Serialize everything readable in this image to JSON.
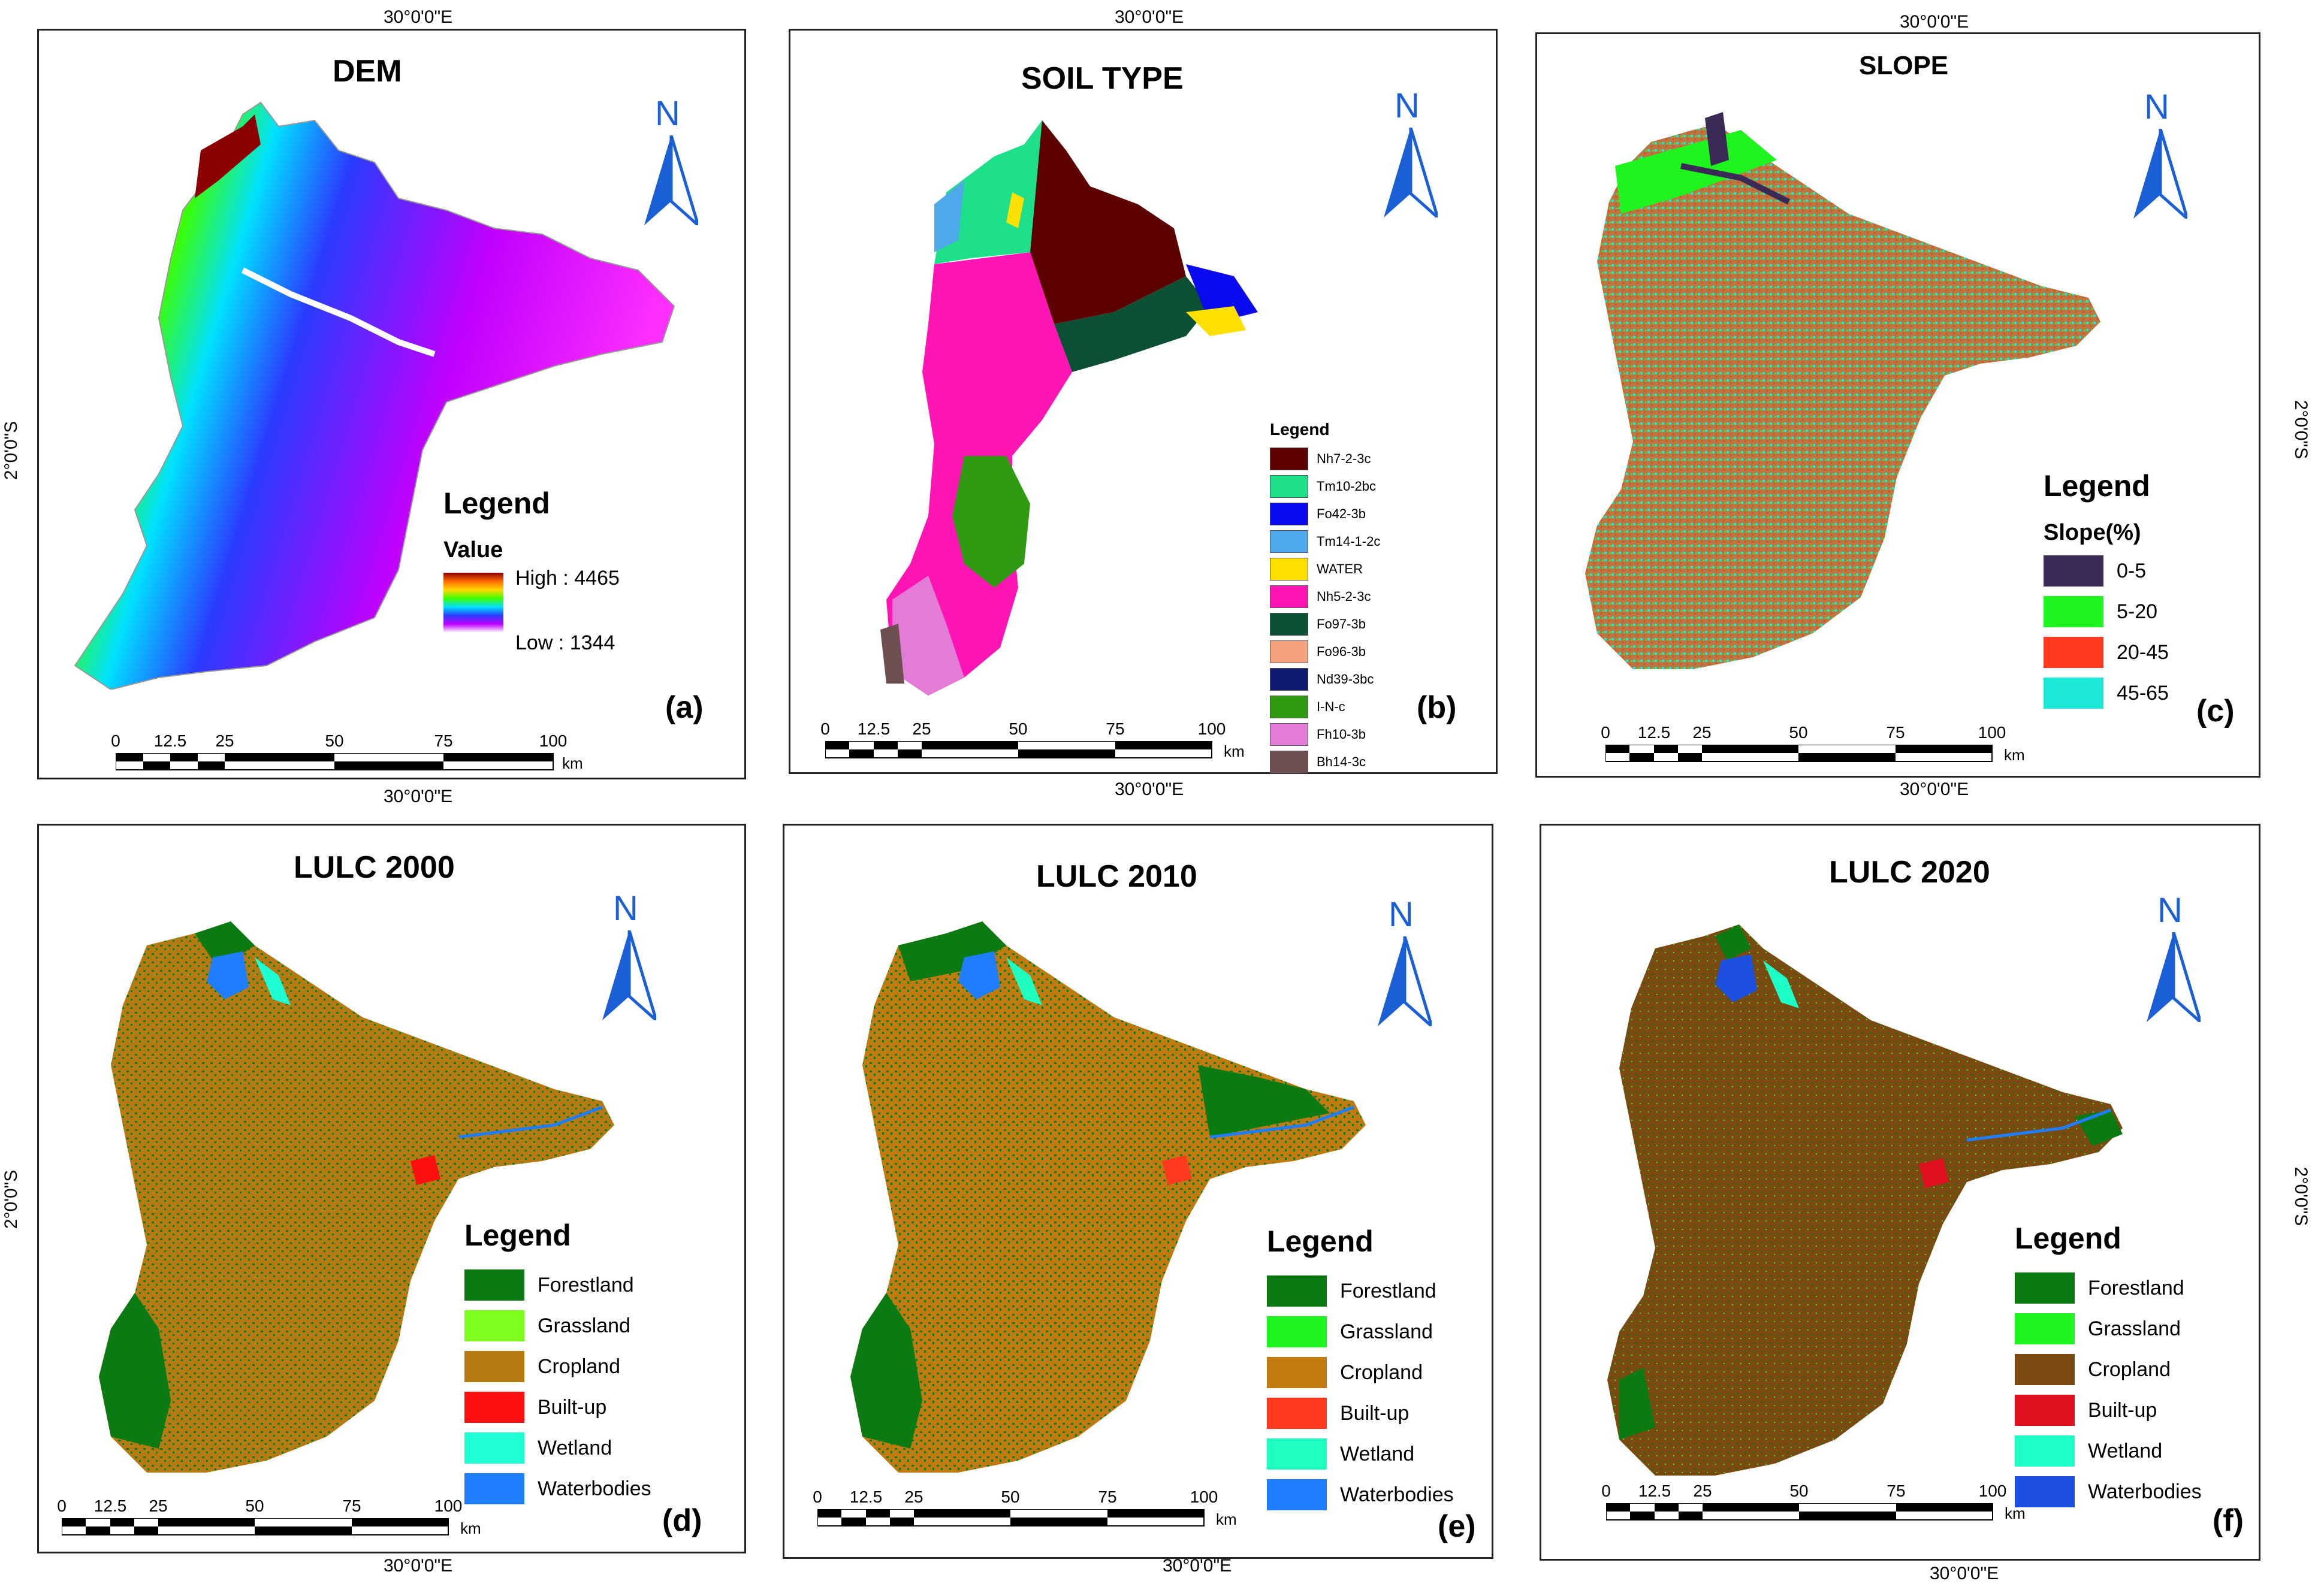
{
  "coords": {
    "lon": "30°0'0\"E",
    "lat": "2°0'0\"S"
  },
  "north_label": "N",
  "scale": {
    "ticks": [
      "0",
      "12.5",
      "25",
      "50",
      "75",
      "100"
    ],
    "unit": "km"
  },
  "panels": {
    "dem": {
      "title": "DEM",
      "label": "(a)",
      "legend_title": "Legend",
      "legend_sub": "Value",
      "high": "High : 4465",
      "low": "Low : 1344",
      "ramp_colors": [
        "#8b0000",
        "#ff6a00",
        "#ffd800",
        "#3cff00",
        "#00e0ff",
        "#2a3cff",
        "#c000ff",
        "#ffffff"
      ]
    },
    "soil": {
      "title": "SOIL TYPE",
      "label": "(b)",
      "legend_title": "Legend",
      "classes": [
        {
          "name": "Nh7-2-3c",
          "color": "#5c0000"
        },
        {
          "name": "Tm10-2bc",
          "color": "#1ee08a"
        },
        {
          "name": "Fo42-3b",
          "color": "#0a0aee"
        },
        {
          "name": "Tm14-1-2c",
          "color": "#4fa8ea"
        },
        {
          "name": "WATER",
          "color": "#ffe000"
        },
        {
          "name": "Nh5-2-3c",
          "color": "#ff14b4"
        },
        {
          "name": "Fo97-3b",
          "color": "#0b4f34"
        },
        {
          "name": "Fo96-3b",
          "color": "#f4a27e"
        },
        {
          "name": "Nd39-3bc",
          "color": "#0e1a6e"
        },
        {
          "name": "I-N-c",
          "color": "#2f9a12"
        },
        {
          "name": "Fh10-3b",
          "color": "#e27cd6"
        },
        {
          "name": "Bh14-3c",
          "color": "#6e5050"
        }
      ]
    },
    "slope": {
      "title": "SLOPE",
      "label": "(c)",
      "legend_title": "Legend",
      "legend_sub": "Slope(%)",
      "classes": [
        {
          "name": "0-5",
          "color": "#3a2a55"
        },
        {
          "name": "5-20",
          "color": "#1ef51e"
        },
        {
          "name": "20-45",
          "color": "#ff3a1e"
        },
        {
          "name": "45-65",
          "color": "#1ee8d8"
        }
      ]
    },
    "lulc2000": {
      "title": "LULC 2000",
      "label": "(d)",
      "legend_title": "Legend",
      "classes": [
        {
          "name": "Forestland",
          "color": "#0b7a12"
        },
        {
          "name": "Grassland",
          "color": "#7eff1e"
        },
        {
          "name": "Cropland",
          "color": "#b57a12"
        },
        {
          "name": "Built-up",
          "color": "#ff1010"
        },
        {
          "name": "Wetland",
          "color": "#1effd4"
        },
        {
          "name": "Waterbodies",
          "color": "#1e7eff"
        }
      ]
    },
    "lulc2010": {
      "title": "LULC 2010",
      "label": "(e)",
      "legend_title": "Legend",
      "classes": [
        {
          "name": "Forestland",
          "color": "#0b7a12"
        },
        {
          "name": "Grassland",
          "color": "#1ef51e"
        },
        {
          "name": "Cropland",
          "color": "#c07a10"
        },
        {
          "name": "Built-up",
          "color": "#ff3a1e"
        },
        {
          "name": "Wetland",
          "color": "#1effc0"
        },
        {
          "name": "Waterbodies",
          "color": "#1e7eff"
        }
      ]
    },
    "lulc2020": {
      "title": "LULC 2020",
      "label": "(f)",
      "legend_title": "Legend",
      "classes": [
        {
          "name": "Forestland",
          "color": "#0b7a12"
        },
        {
          "name": "Grassland",
          "color": "#1ef51e"
        },
        {
          "name": "Cropland",
          "color": "#7a4a10"
        },
        {
          "name": "Built-up",
          "color": "#e01020"
        },
        {
          "name": "Wetland",
          "color": "#1effc8"
        },
        {
          "name": "Waterbodies",
          "color": "#1e50e0"
        }
      ]
    }
  }
}
